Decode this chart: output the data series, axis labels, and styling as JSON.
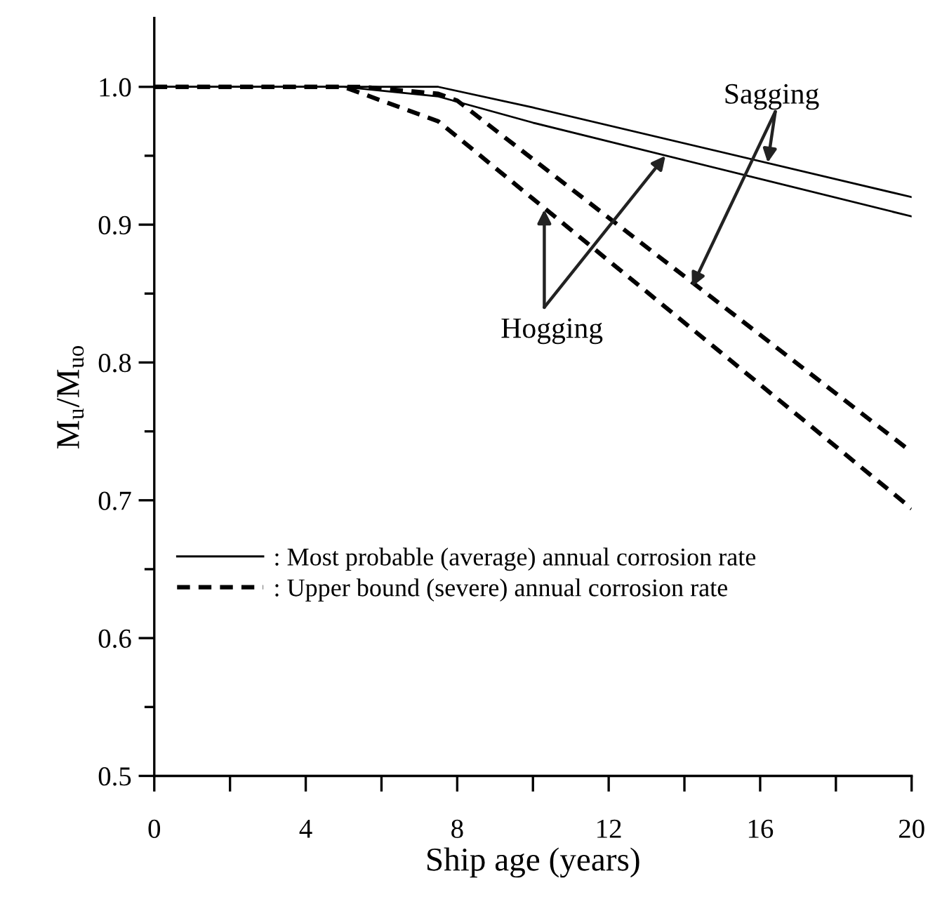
{
  "chart_data": {
    "type": "line",
    "xlabel": "Ship age (years)",
    "ylabel": "M$_{u}$/M$_{uo}$",
    "xlim": [
      0,
      20
    ],
    "ylim": [
      0.5,
      1.05
    ],
    "xticks": [
      0,
      {
        "value": 2,
        "label": null
      },
      4,
      {
        "value": 6,
        "label": null
      },
      8,
      {
        "value": 10,
        "label": null
      },
      12,
      {
        "value": 14,
        "label": null
      },
      16,
      {
        "value": 18,
        "label": null
      },
      20
    ],
    "yticks": [
      0.5,
      {
        "value": 0.55,
        "label": null
      },
      0.6,
      {
        "value": 0.65,
        "label": null
      },
      0.7,
      {
        "value": 0.75,
        "label": null
      },
      0.8,
      {
        "value": 0.85,
        "label": null
      },
      0.9,
      {
        "value": 0.95,
        "label": null
      },
      {
        "value": 1.0,
        "label": "1.0"
      }
    ],
    "grid": false,
    "legend": "bottom left",
    "marker": "none",
    "series": [
      {
        "name": ": Most probable (average) annual corrosion rate",
        "color": "#000000",
        "line_style": "solid",
        "x": [
          0,
          7.5,
          10,
          20
        ],
        "values": [
          1.0,
          1.0,
          0.985,
          0.92
        ]
      },
      {
        "color": "#000000",
        "line_style": "solid",
        "x": [
          0,
          5,
          7.5,
          10,
          20
        ],
        "values": [
          1.0,
          1.0,
          0.993,
          0.974,
          0.906
        ]
      },
      {
        "name": ": Upper bound (severe) annual corrosion rate",
        "color": "#000000",
        "line_style": "dashed",
        "x": [
          0,
          5.5,
          7.5,
          8,
          20
        ],
        "values": [
          1.0,
          1.0,
          0.995,
          0.99,
          0.735
        ]
      },
      {
        "color": "#000000",
        "line_style": "dashed",
        "x": [
          0,
          5,
          7.5,
          20
        ],
        "values": [
          1.0,
          1.0,
          0.975,
          0.694
        ]
      }
    ],
    "annotations": [
      {
        "text": "Sagging",
        "x": 16.2,
        "y": 0.945
      },
      {
        "text": "Hogging",
        "x": 10.3,
        "y": 0.911
      }
    ]
  }
}
